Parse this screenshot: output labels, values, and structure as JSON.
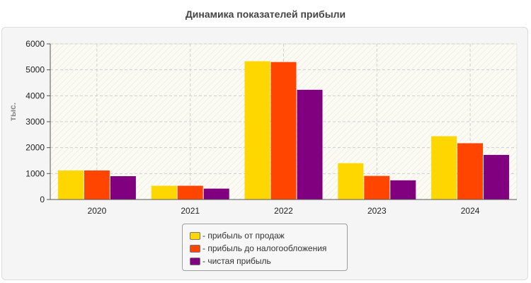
{
  "chart_data": {
    "type": "bar",
    "title": "Динамика показателей прибыли",
    "ylabel": "тыс.",
    "xlabel": "",
    "categories": [
      "2020",
      "2021",
      "2022",
      "2023",
      "2024"
    ],
    "ylim": [
      0,
      6000
    ],
    "yticks": [
      0,
      1000,
      2000,
      3000,
      4000,
      5000,
      6000
    ],
    "grid": true,
    "legend_position": "bottom-center",
    "series": [
      {
        "name": "- прибыль от продаж",
        "color": "#FFD700",
        "values": [
          1120,
          530,
          5330,
          1400,
          2440
        ]
      },
      {
        "name": "- прибыль до налогообложения",
        "color": "#FF4500",
        "values": [
          1120,
          530,
          5300,
          910,
          2170
        ]
      },
      {
        "name": "- чистая прибыль",
        "color": "#800080",
        "values": [
          900,
          420,
          4230,
          740,
          1720
        ]
      }
    ]
  }
}
